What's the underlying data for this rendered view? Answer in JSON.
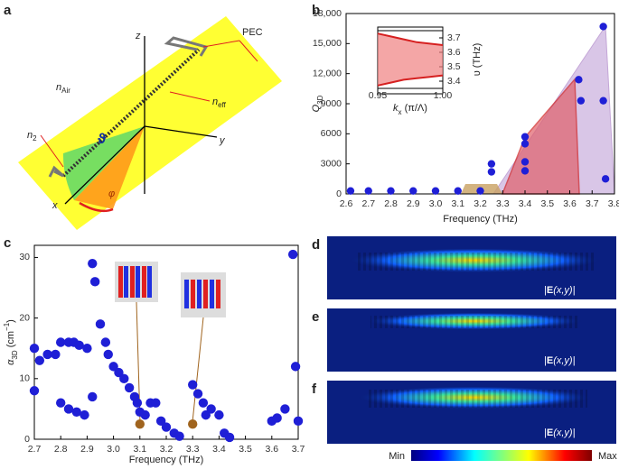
{
  "panel_labels": [
    "a",
    "b",
    "c",
    "d",
    "e",
    "f"
  ],
  "diagram": {
    "axis_z": "z",
    "axis_y": "y",
    "axis_x": "x",
    "pec": "PEC",
    "n_air": {
      "main": "n",
      "sub": "Air"
    },
    "n_eff": {
      "main": "n",
      "sub": "eff"
    },
    "n_2": {
      "main": "n",
      "sub": "2"
    },
    "theta": "ϑ",
    "phi": "φ"
  },
  "chart_data": [
    {
      "type": "scatter",
      "xlabel": "Frequency (THz)",
      "ylabel": {
        "main": "Q",
        "sub": "3D"
      },
      "x": [
        3.25,
        3.25,
        3.4,
        3.4,
        3.4,
        3.4,
        3.64,
        3.65,
        3.75,
        3.75,
        3.76,
        2.62,
        2.7,
        2.8,
        2.9,
        3.0,
        3.1,
        3.2
      ],
      "values": [
        2200,
        3000,
        5700,
        5000,
        3200,
        2300,
        11400,
        9300,
        16700,
        9300,
        1500,
        300,
        300,
        300,
        300,
        300,
        300,
        300
      ],
      "color": "#1f1fd6",
      "xlim": [
        2.6,
        3.8
      ],
      "xticks": [
        2.6,
        2.7,
        2.8,
        2.9,
        {
          "value": 3.0,
          "label": "3.0"
        },
        3.1,
        3.2,
        3.3,
        3.4,
        3.5,
        3.6,
        3.7,
        3.8
      ],
      "ylim": [
        0,
        18000
      ],
      "yticks": [
        0,
        3000,
        6000,
        9000,
        {
          "value": 12000,
          "label": "12,000"
        },
        {
          "value": 15000,
          "label": "15,000"
        },
        {
          "value": 18000,
          "label": "18,000"
        }
      ]
    },
    {
      "type": "line",
      "xlabel": {
        "main": "k",
        "sub": "x",
        "post": " (π/Λ)"
      },
      "ylabel": "υ (THz)",
      "x": [
        0.95,
        0.96,
        0.97,
        0.98,
        0.99,
        1.0
      ],
      "series": [
        {
          "color": "#d62020",
          "values": [
            3.73,
            3.71,
            3.69,
            3.67,
            3.66,
            3.65
          ]
        },
        {
          "color": "#d62020",
          "values": [
            3.37,
            3.39,
            3.41,
            3.42,
            3.43,
            3.44
          ]
        }
      ],
      "xlim": [
        0.95,
        1.0
      ],
      "xticks": [
        0.95,
        {
          "value": 1.0,
          "label": "1.00"
        }
      ],
      "ylim": [
        3.35,
        3.75
      ],
      "yticks": [
        3.4,
        3.5,
        3.6,
        3.7
      ]
    },
    {
      "type": "scatter",
      "xlabel": "Frequency (THz)",
      "ylabel": {
        "main": "α",
        "sub": "3D",
        "post": " (cm",
        "sup": "−1",
        "end": ")"
      },
      "series": [
        {
          "color": "#1f1fd6",
          "x": [
            2.7,
            2.7,
            2.72,
            2.75,
            2.78,
            2.8,
            2.83,
            2.85,
            2.87,
            2.9,
            2.92,
            2.93,
            2.95,
            2.97,
            2.98,
            3.0,
            3.02,
            3.04,
            3.06,
            3.08,
            3.09,
            3.1,
            3.12,
            3.14,
            3.16,
            3.18,
            3.2,
            3.23,
            3.25,
            3.3,
            3.32,
            3.34,
            3.35,
            3.37,
            3.4,
            3.42,
            3.44,
            3.6,
            3.62,
            3.65,
            3.68,
            3.69,
            3.7,
            2.8,
            2.83,
            2.86,
            2.89,
            2.92
          ],
          "values": [
            15,
            8,
            13,
            14,
            14,
            16,
            16,
            16,
            15.5,
            15,
            29,
            26,
            19,
            16,
            14,
            12,
            11,
            10,
            8.5,
            7,
            6,
            4.5,
            4,
            6,
            6,
            3,
            2,
            1,
            0.5,
            9,
            7.5,
            6,
            4,
            5,
            4,
            1,
            0.3,
            3,
            3.5,
            5,
            30.5,
            12,
            3,
            6,
            5,
            4.5,
            4,
            7
          ]
        },
        {
          "color": "#a0641e",
          "x": [
            3.1,
            3.3
          ],
          "values": [
            2.5,
            2.5
          ]
        }
      ],
      "xlim": [
        2.7,
        3.7
      ],
      "xticks": [
        2.7,
        2.8,
        2.9,
        {
          "value": 3.0,
          "label": "3.0"
        },
        3.1,
        3.2,
        3.3,
        3.4,
        3.5,
        3.6,
        3.7
      ],
      "ylim": [
        0,
        32
      ],
      "yticks": [
        0,
        10,
        20,
        30
      ]
    }
  ],
  "field_maps": [
    {
      "pre": "|",
      "bold": "E",
      "post": "(x,y)|"
    },
    {
      "pre": "|",
      "bold": "E",
      "post": "(x,y)|"
    },
    {
      "pre": "|",
      "bold": "E",
      "post": "(x,y)|"
    }
  ],
  "colorbar": {
    "min": "Min",
    "max": "Max"
  }
}
